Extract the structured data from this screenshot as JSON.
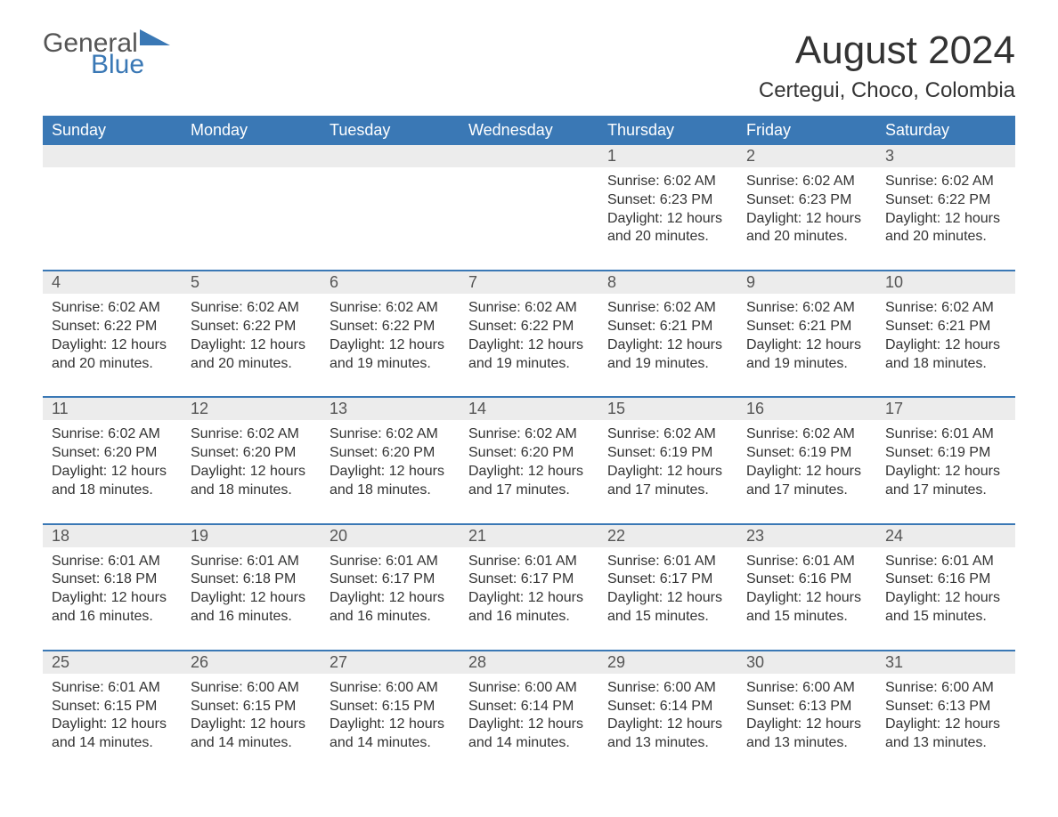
{
  "logo": {
    "main": "General",
    "sub": "Blue",
    "accent_color": "#3a78b5"
  },
  "header": {
    "month_title": "August 2024",
    "location": "Certegui, Choco, Colombia"
  },
  "colors": {
    "header_bg": "#3a78b5",
    "header_text": "#ffffff",
    "daynum_bg": "#ececec",
    "text": "#333333",
    "rule": "#3a78b5",
    "page_bg": "#ffffff"
  },
  "typography": {
    "title_fontsize": 44,
    "location_fontsize": 24,
    "dow_fontsize": 18,
    "daynum_fontsize": 18,
    "body_fontsize": 16,
    "font_family": "Arial"
  },
  "layout": {
    "columns": 7,
    "weeks": 5,
    "first_day_column": 4
  },
  "labels": {
    "sunrise_prefix": "Sunrise: ",
    "sunset_prefix": "Sunset: ",
    "daylight_prefix": "Daylight: "
  },
  "days_of_week": [
    "Sunday",
    "Monday",
    "Tuesday",
    "Wednesday",
    "Thursday",
    "Friday",
    "Saturday"
  ],
  "days": [
    {
      "n": 1,
      "sunrise": "6:02 AM",
      "sunset": "6:23 PM",
      "daylight": "12 hours and 20 minutes."
    },
    {
      "n": 2,
      "sunrise": "6:02 AM",
      "sunset": "6:23 PM",
      "daylight": "12 hours and 20 minutes."
    },
    {
      "n": 3,
      "sunrise": "6:02 AM",
      "sunset": "6:22 PM",
      "daylight": "12 hours and 20 minutes."
    },
    {
      "n": 4,
      "sunrise": "6:02 AM",
      "sunset": "6:22 PM",
      "daylight": "12 hours and 20 minutes."
    },
    {
      "n": 5,
      "sunrise": "6:02 AM",
      "sunset": "6:22 PM",
      "daylight": "12 hours and 20 minutes."
    },
    {
      "n": 6,
      "sunrise": "6:02 AM",
      "sunset": "6:22 PM",
      "daylight": "12 hours and 19 minutes."
    },
    {
      "n": 7,
      "sunrise": "6:02 AM",
      "sunset": "6:22 PM",
      "daylight": "12 hours and 19 minutes."
    },
    {
      "n": 8,
      "sunrise": "6:02 AM",
      "sunset": "6:21 PM",
      "daylight": "12 hours and 19 minutes."
    },
    {
      "n": 9,
      "sunrise": "6:02 AM",
      "sunset": "6:21 PM",
      "daylight": "12 hours and 19 minutes."
    },
    {
      "n": 10,
      "sunrise": "6:02 AM",
      "sunset": "6:21 PM",
      "daylight": "12 hours and 18 minutes."
    },
    {
      "n": 11,
      "sunrise": "6:02 AM",
      "sunset": "6:20 PM",
      "daylight": "12 hours and 18 minutes."
    },
    {
      "n": 12,
      "sunrise": "6:02 AM",
      "sunset": "6:20 PM",
      "daylight": "12 hours and 18 minutes."
    },
    {
      "n": 13,
      "sunrise": "6:02 AM",
      "sunset": "6:20 PM",
      "daylight": "12 hours and 18 minutes."
    },
    {
      "n": 14,
      "sunrise": "6:02 AM",
      "sunset": "6:20 PM",
      "daylight": "12 hours and 17 minutes."
    },
    {
      "n": 15,
      "sunrise": "6:02 AM",
      "sunset": "6:19 PM",
      "daylight": "12 hours and 17 minutes."
    },
    {
      "n": 16,
      "sunrise": "6:02 AM",
      "sunset": "6:19 PM",
      "daylight": "12 hours and 17 minutes."
    },
    {
      "n": 17,
      "sunrise": "6:01 AM",
      "sunset": "6:19 PM",
      "daylight": "12 hours and 17 minutes."
    },
    {
      "n": 18,
      "sunrise": "6:01 AM",
      "sunset": "6:18 PM",
      "daylight": "12 hours and 16 minutes."
    },
    {
      "n": 19,
      "sunrise": "6:01 AM",
      "sunset": "6:18 PM",
      "daylight": "12 hours and 16 minutes."
    },
    {
      "n": 20,
      "sunrise": "6:01 AM",
      "sunset": "6:17 PM",
      "daylight": "12 hours and 16 minutes."
    },
    {
      "n": 21,
      "sunrise": "6:01 AM",
      "sunset": "6:17 PM",
      "daylight": "12 hours and 16 minutes."
    },
    {
      "n": 22,
      "sunrise": "6:01 AM",
      "sunset": "6:17 PM",
      "daylight": "12 hours and 15 minutes."
    },
    {
      "n": 23,
      "sunrise": "6:01 AM",
      "sunset": "6:16 PM",
      "daylight": "12 hours and 15 minutes."
    },
    {
      "n": 24,
      "sunrise": "6:01 AM",
      "sunset": "6:16 PM",
      "daylight": "12 hours and 15 minutes."
    },
    {
      "n": 25,
      "sunrise": "6:01 AM",
      "sunset": "6:15 PM",
      "daylight": "12 hours and 14 minutes."
    },
    {
      "n": 26,
      "sunrise": "6:00 AM",
      "sunset": "6:15 PM",
      "daylight": "12 hours and 14 minutes."
    },
    {
      "n": 27,
      "sunrise": "6:00 AM",
      "sunset": "6:15 PM",
      "daylight": "12 hours and 14 minutes."
    },
    {
      "n": 28,
      "sunrise": "6:00 AM",
      "sunset": "6:14 PM",
      "daylight": "12 hours and 14 minutes."
    },
    {
      "n": 29,
      "sunrise": "6:00 AM",
      "sunset": "6:14 PM",
      "daylight": "12 hours and 13 minutes."
    },
    {
      "n": 30,
      "sunrise": "6:00 AM",
      "sunset": "6:13 PM",
      "daylight": "12 hours and 13 minutes."
    },
    {
      "n": 31,
      "sunrise": "6:00 AM",
      "sunset": "6:13 PM",
      "daylight": "12 hours and 13 minutes."
    }
  ]
}
